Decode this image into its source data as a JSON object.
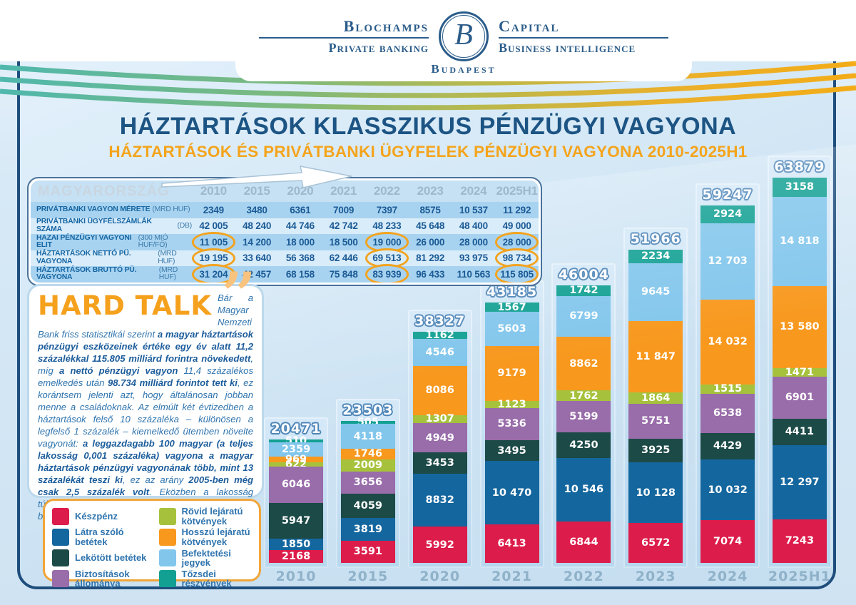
{
  "colors": {
    "frame_border": "#1f4e7d",
    "title_blue": "#1c5484",
    "accent_orange": "#f4a41c",
    "table_row_dark": "#a8d3f0",
    "table_row_light": "#d9ecfa",
    "highlight_ring": "#f2a31f"
  },
  "header": {
    "brand_left_top": "Blochamps",
    "brand_left_bottom": "Private banking",
    "brand_right_top": "Capital",
    "brand_right_bottom": "Business intelligence",
    "brand_city": "Budapest",
    "monogram": "B"
  },
  "title": "HÁZTARTÁSOK KLASSZIKUS PÉNZÜGYI VAGYONA",
  "subtitle": "HÁZTARTÁSOK ÉS PRIVÁTBANKI ÜGYFELEK PÉNZÜGYI VAGYONA 2010-2025H1",
  "table": {
    "region_label": "MAGYARORSZÁG",
    "years": [
      "2010",
      "2015",
      "2020",
      "2021",
      "2022",
      "2023",
      "2024",
      "2025H1"
    ],
    "rows": [
      {
        "label": "PRIVÁTBANKI VAGYON MÉRETE",
        "unit": "(MRD HUF)",
        "values": [
          "2349",
          "3480",
          "6361",
          "7009",
          "7397",
          "8575",
          "10 537",
          "11 292"
        ],
        "highlights": []
      },
      {
        "label": "PRIVÁTBANKI ÜGYFÉLSZÁMLÁK SZÁMA",
        "unit": "(DB)",
        "values": [
          "42 005",
          "48 240",
          "44 746",
          "42 742",
          "48 233",
          "45 648",
          "48 400",
          "49 000"
        ],
        "highlights": []
      },
      {
        "label": "HAZAI PÉNZÜGYI VAGYONI ELIT",
        "unit": "(300 MIÓ HUF/FŐ)",
        "values": [
          "11 005",
          "14 200",
          "18 000",
          "18 500",
          "19 000",
          "26 000",
          "28 000",
          "28 000"
        ],
        "highlights": [
          0,
          4,
          7
        ]
      },
      {
        "label": "HÁZTARTÁSOK NETTÓ PÜ. VAGYONA",
        "unit": "(MRD HUF)",
        "values": [
          "19 195",
          "33 640",
          "56 368",
          "62 446",
          "69 513",
          "81 292",
          "93 975",
          "98 734"
        ],
        "highlights": [
          0,
          4,
          7
        ]
      },
      {
        "label": "HÁZTARTÁSOK BRUTTÓ PÜ. VAGYONA",
        "unit": "(MRD HUF)",
        "values": [
          "31 204",
          "42 457",
          "68 158",
          "75 848",
          "83 939",
          "96 433",
          "110 563",
          "115 805"
        ],
        "highlights": [
          0,
          4,
          7
        ]
      }
    ]
  },
  "hard_talk": {
    "title": "HARD TALK",
    "quote_mark": "”",
    "segments": [
      {
        "t": "Bár a Magyar Nemzeti Bank friss statisztikái szerint ",
        "b": false
      },
      {
        "t": "a magyar háztartások pénzügyi eszközeinek értéke egy év alatt 11,2 százalékkal 115.805 milliárd forintra növekedett",
        "b": true
      },
      {
        "t": ", míg ",
        "b": false
      },
      {
        "t": "a nettó pénzügyi vagyon",
        "b": true
      },
      {
        "t": " 11,4 százalékos emelkedés után ",
        "b": false
      },
      {
        "t": "98.734 milliárd forintot tett ki",
        "b": true
      },
      {
        "t": ", ez korántsem jelenti azt, hogy általánosan jobban menne a családoknak. Az elmúlt két évtizedben a háztartások felső 10 százaléka – különösen a legfelső 1 százalék – kiemelkedő ütemben növelte vagyonát: ",
        "b": false
      },
      {
        "t": "a leggazdagabb 100 magyar (a teljes lakosság 0,001 százaléka) vagyona a magyar háztartások pénzügyi vagyonának több, mint 13 százalékát teszi ki",
        "b": true
      },
      {
        "t": ", ez az arány ",
        "b": false
      },
      {
        "t": "2005-ben még csak 2,5 százalék volt",
        "b": true
      },
      {
        "t": ". Eközben a lakosság túlnyomó többségénél gyarapodásról nem is beszélhetünk.",
        "b": false
      }
    ]
  },
  "legend": {
    "items": [
      {
        "name": "Készpénz",
        "color": "#dc1c4a"
      },
      {
        "name": "Látra szóló betétek",
        "color": "#14669e"
      },
      {
        "name": "Lekötött betétek",
        "color": "#1c4a47"
      },
      {
        "name": "Biztosítások állománya",
        "color": "#996caa"
      },
      {
        "name": "Rövid lejáratú kötvények",
        "color": "#a6c23d"
      },
      {
        "name": "Hosszú lejáratú kötvények",
        "color": "#f8981d"
      },
      {
        "name": "Befektetési jegyek",
        "color": "#82c6ec"
      },
      {
        "name": "Tőzsdei részvények",
        "color": "#12a093"
      }
    ]
  },
  "chart_data": {
    "type": "bar",
    "stacked": true,
    "title": "Háztartások klasszikus pénzügyi vagyona (MRD HUF)",
    "categories": [
      "2010",
      "2015",
      "2020",
      "2021",
      "2022",
      "2023",
      "2024",
      "2025H1"
    ],
    "series": [
      {
        "name": "Készpénz",
        "color": "#dc1c4a",
        "values": [
          2168,
          3591,
          5992,
          6413,
          6844,
          6572,
          7074,
          7243
        ]
      },
      {
        "name": "Látra szóló betétek",
        "color": "#14669e",
        "values": [
          1850,
          3819,
          8832,
          10470,
          10546,
          10128,
          10032,
          12297
        ]
      },
      {
        "name": "Lekötött betétek",
        "color": "#1c4a47",
        "values": [
          5947,
          4059,
          3453,
          3495,
          4250,
          3925,
          4429,
          4411
        ]
      },
      {
        "name": "Biztosítások állománya",
        "color": "#996caa",
        "values": [
          6046,
          3656,
          4949,
          5336,
          5199,
          5751,
          6538,
          6901
        ]
      },
      {
        "name": "Rövid lejáratú kötvények",
        "color": "#a6c23d",
        "values": [
          622,
          2009,
          1307,
          1123,
          1762,
          1864,
          1515,
          1471
        ]
      },
      {
        "name": "Hosszú lejáratú kötvények",
        "color": "#f8981d",
        "values": [
          969,
          1746,
          8086,
          9179,
          8862,
          11847,
          14032,
          13580
        ]
      },
      {
        "name": "Befektetési jegyek",
        "color": "#82c6ec",
        "values": [
          2359,
          4118,
          4546,
          5603,
          6799,
          9645,
          12703,
          14818
        ]
      },
      {
        "name": "Tőzsdei részvények",
        "color": "#12a093",
        "values": [
          510,
          505,
          1162,
          1567,
          1742,
          2234,
          2924,
          3158
        ]
      }
    ],
    "totals": [
      20471,
      23503,
      38327,
      43185,
      46004,
      51966,
      59247,
      63879
    ],
    "ylim": [
      0,
      63879
    ],
    "value_labels": true,
    "grid": false,
    "legend_position": "bottom-left"
  }
}
